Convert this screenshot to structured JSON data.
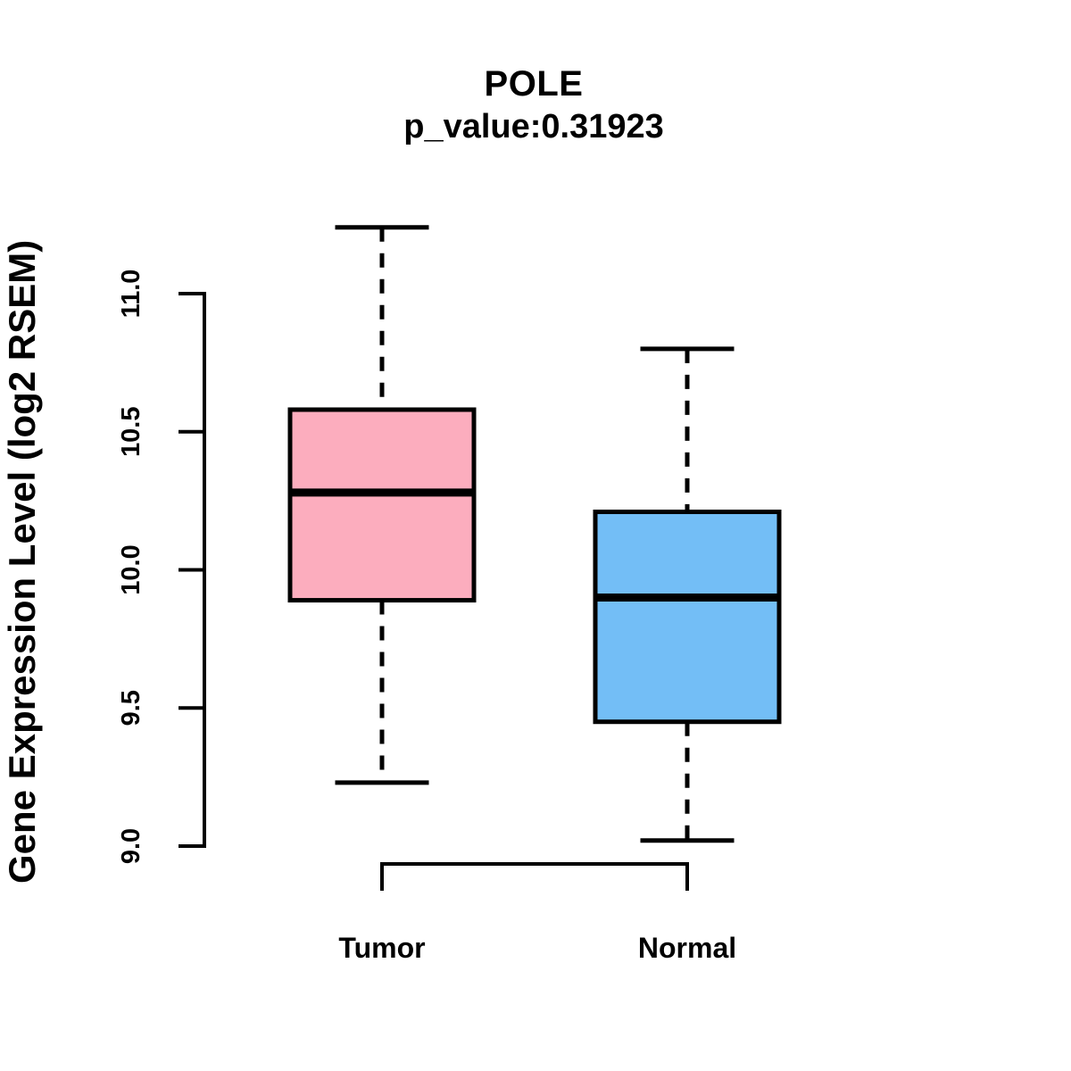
{
  "figure": {
    "title": "POLE",
    "subtitle": "p_value:0.31923",
    "ylabel": "Gene Expression Level (log2 RSEM)"
  },
  "chart_data": {
    "type": "boxplot",
    "title": "POLE",
    "subtitle": "p_value:0.31923",
    "p_value": 0.31923,
    "gene": "POLE",
    "ylabel": "Gene Expression Level (log2 RSEM)",
    "xlabel": "",
    "categories": [
      "Tumor",
      "Normal"
    ],
    "yticks": [
      9.0,
      9.5,
      10.0,
      10.5,
      11.0
    ],
    "ytick_labels": [
      "9.0",
      "9.5",
      "10.0",
      "10.5",
      "11.0"
    ],
    "ylim": [
      8.95,
      11.3
    ],
    "grid": false,
    "legend": "none",
    "series": [
      {
        "name": "Tumor",
        "fill": "#FCADBE",
        "lower_whisker": 9.23,
        "q1": 9.89,
        "median": 10.28,
        "q3": 10.58,
        "upper_whisker": 11.24
      },
      {
        "name": "Normal",
        "fill": "#73BEF6",
        "lower_whisker": 9.02,
        "q1": 9.45,
        "median": 9.9,
        "q3": 10.21,
        "upper_whisker": 10.8
      }
    ],
    "line_color": "#000000",
    "background": "#FFFFFF"
  }
}
